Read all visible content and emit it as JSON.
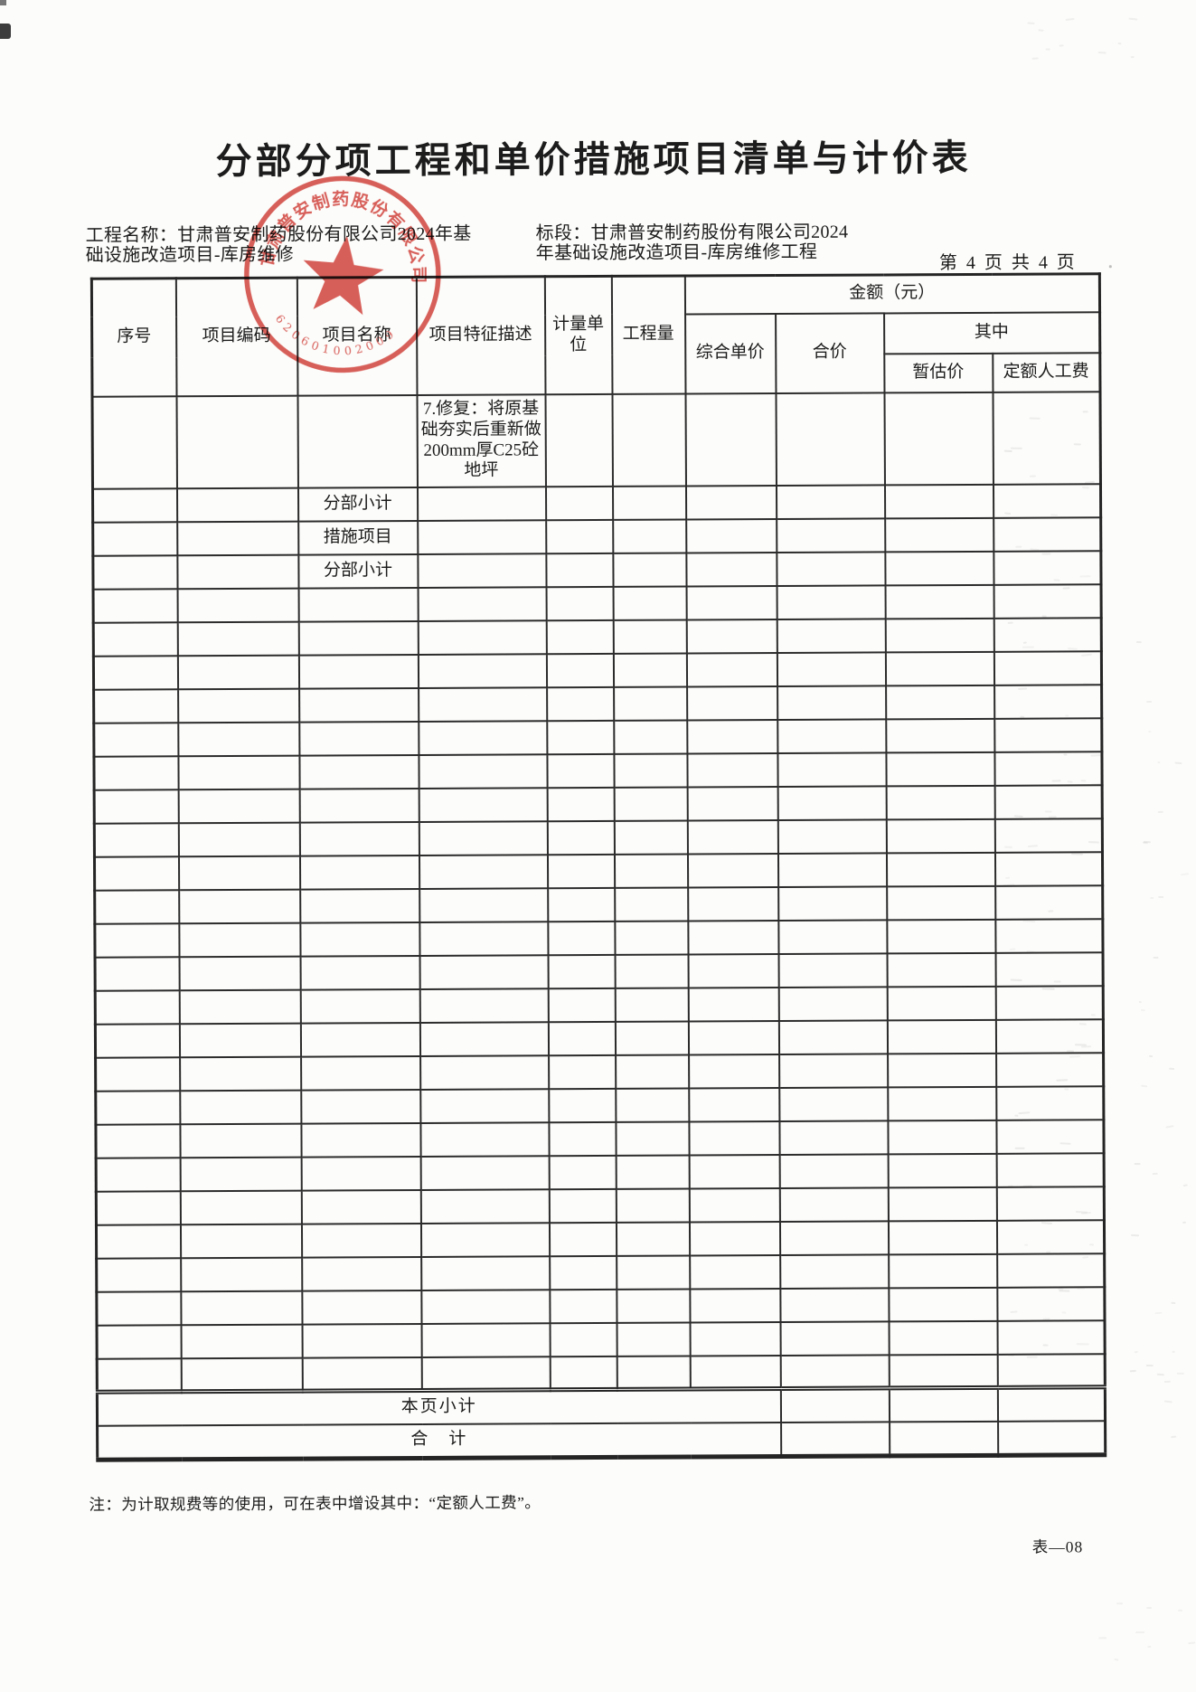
{
  "page": {
    "title": "分部分项工程和单价措施项目清单与计价表",
    "project_label": "工程名称：",
    "project_value": "甘肃普安制药股份有限公司2024年基础设施改造项目-库房维修",
    "section_label": "标段：",
    "section_value": "甘肃普安制药股份有限公司2024年基础设施改造项目-库房维修工程",
    "page_info": "第 4 页  共 4 页",
    "footnote": "注：为计取规费等的使用，可在表中增设其中：“定额人工费”。",
    "form_code": "表—08"
  },
  "stamp": {
    "ring_text": "甘肃普安制药股份有限公司",
    "serial": "620601002009",
    "color": "#cf3b35"
  },
  "table": {
    "headers": {
      "seq": "序号",
      "code": "项目编码",
      "name": "项目名称",
      "feature": "项目特征描述",
      "unit": "计量单位",
      "quantity": "工程量",
      "amount_group": "金额（元）",
      "unit_price": "综合单价",
      "total_price": "合价",
      "including": "其中",
      "provisional": "暂估价",
      "labor": "定额人工费"
    },
    "body_rows": [
      {
        "type": "feature",
        "feature": "7.修复：将原基础夯实后重新做200mm厚C25砼地坪"
      },
      {
        "type": "name",
        "name": "分部小计"
      },
      {
        "type": "name",
        "name": "措施项目"
      },
      {
        "type": "name",
        "name": "分部小计"
      }
    ],
    "empty_row_count": 24,
    "summary_rows": [
      {
        "label": "本页小计"
      },
      {
        "label": "合　计"
      }
    ]
  }
}
